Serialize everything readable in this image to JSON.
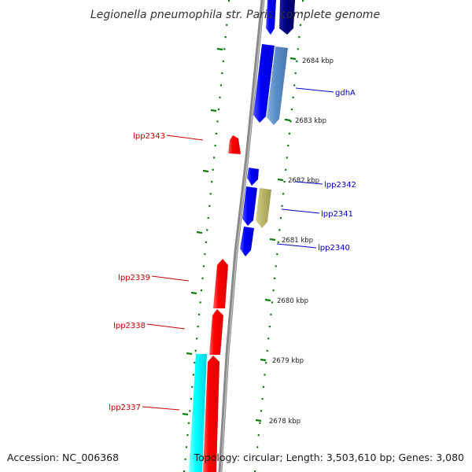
{
  "title": "Legionella pneumophila str. Paris, complete genome",
  "footer": {
    "accession": "Accession: NC_006368",
    "topology": "Topology: circular; Length: 3,503,610 bp; Genes: 3,080"
  },
  "colors": {
    "forward_gene": "#0000ff",
    "reverse_gene": "#ff0000",
    "dark_blue_gene": "#00007f",
    "steel_blue_gene": "#5b8fc8",
    "khaki_gene": "#bdb76b",
    "cyan_gene": "#00ffff",
    "backbone": "#888888",
    "tick": "#0a7d0a",
    "forward_label": "#0000cc",
    "reverse_label": "#cc0000"
  },
  "scale_labels": [
    "2684 kbp",
    "2683 kbp",
    "2682 kbp",
    "2681 kbp",
    "2680 kbp",
    "2679 kbp",
    "2678 kbp"
  ],
  "gene_labels": [
    "gdhA",
    "lpp2343",
    "lpp2342",
    "lpp2341",
    "lpp2340",
    "lpp2339",
    "lpp2338",
    "lpp2337"
  ],
  "genes": [
    {
      "strand": "forward",
      "color_key": "forward_gene",
      "start_kbp": 2684.68,
      "end_kbp": 2684.25
    },
    {
      "strand": "forward",
      "color_key": "dark_blue_gene",
      "start_kbp": 2684.68,
      "end_kbp": 2684.25
    },
    {
      "strand": "forward",
      "color_key": "forward_gene",
      "start_kbp": 2684.18,
      "end_kbp": 2682.98
    },
    {
      "strand": "forward",
      "color_key": "steel_blue_gene",
      "start_kbp": 2684.18,
      "end_kbp": 2682.98
    },
    {
      "strand": "reverse",
      "color_key": "reverse_gene",
      "start_kbp": 2682.74,
      "end_kbp": 2682.48
    },
    {
      "strand": "forward",
      "color_key": "forward_gene",
      "start_kbp": 2682.22,
      "end_kbp": 2681.95
    },
    {
      "strand": "forward",
      "color_key": "forward_gene",
      "start_kbp": 2681.92,
      "end_kbp": 2681.25
    },
    {
      "strand": "forward",
      "color_key": "khaki_gene",
      "start_kbp": 2681.92,
      "end_kbp": 2681.25
    },
    {
      "strand": "forward",
      "color_key": "forward_gene",
      "start_kbp": 2681.24,
      "end_kbp": 2680.75
    },
    {
      "strand": "reverse",
      "color_key": "reverse_gene",
      "start_kbp": 2680.65,
      "end_kbp": 2679.8
    },
    {
      "strand": "reverse",
      "color_key": "reverse_gene",
      "start_kbp": 2679.8,
      "end_kbp": 2679.05
    },
    {
      "strand": "reverse",
      "color_key": "reverse_gene",
      "start_kbp": 2679.05,
      "end_kbp": 2677.7
    },
    {
      "strand": "reverse",
      "color_key": "cyan_gene",
      "start_kbp": 2679.05,
      "end_kbp": 2677.7
    }
  ]
}
